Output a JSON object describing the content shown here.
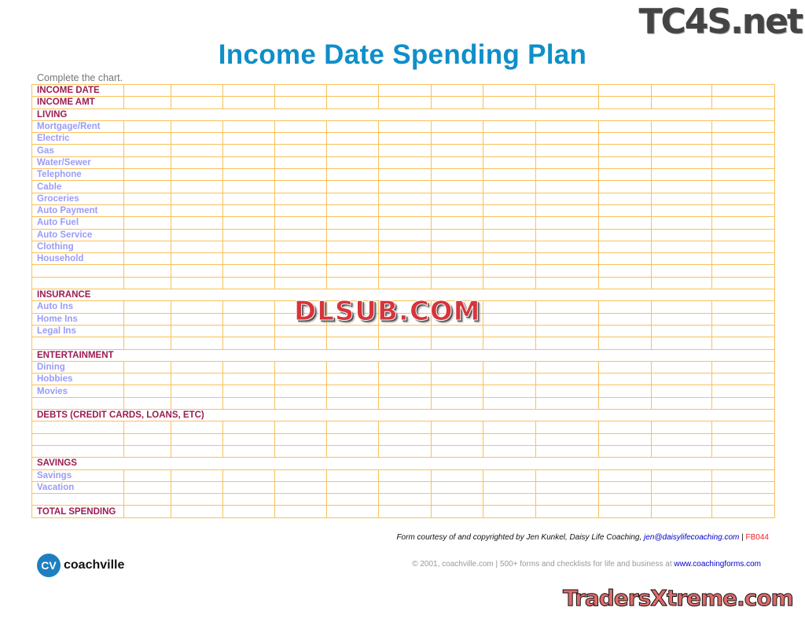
{
  "title": "Income Date Spending Plan",
  "instruction": "Complete the chart.",
  "rows": [
    {
      "label": "INCOME DATE",
      "type": "h"
    },
    {
      "label": "INCOME AMT",
      "type": "h"
    },
    {
      "label": "LIVING",
      "type": "section"
    },
    {
      "label": "Mortgage/Rent",
      "type": "i"
    },
    {
      "label": "Electric",
      "type": "i"
    },
    {
      "label": "Gas",
      "type": "i"
    },
    {
      "label": "Water/Sewer",
      "type": "i"
    },
    {
      "label": "Telephone",
      "type": "i"
    },
    {
      "label": "Cable",
      "type": "i"
    },
    {
      "label": "Groceries",
      "type": "i"
    },
    {
      "label": "Auto Payment",
      "type": "i"
    },
    {
      "label": "Auto Fuel",
      "type": "i"
    },
    {
      "label": "Auto Service",
      "type": "i"
    },
    {
      "label": "Clothing",
      "type": "i"
    },
    {
      "label": "Household",
      "type": "i"
    },
    {
      "label": "",
      "type": "i"
    },
    {
      "label": "",
      "type": "i"
    },
    {
      "label": "INSURANCE",
      "type": "section"
    },
    {
      "label": "Auto Ins",
      "type": "i"
    },
    {
      "label": "Home Ins",
      "type": "i"
    },
    {
      "label": "Legal Ins",
      "type": "i"
    },
    {
      "label": "",
      "type": "i"
    },
    {
      "label": "ENTERTAINMENT",
      "type": "section"
    },
    {
      "label": "Dining",
      "type": "i"
    },
    {
      "label": "Hobbies",
      "type": "i"
    },
    {
      "label": "Movies",
      "type": "i"
    },
    {
      "label": "",
      "type": "i"
    },
    {
      "label": "DEBTS (CREDIT CARDS, LOANS, ETC)",
      "type": "section"
    },
    {
      "label": "",
      "type": "i"
    },
    {
      "label": "",
      "type": "i"
    },
    {
      "label": "",
      "type": "i"
    },
    {
      "label": "SAVINGS",
      "type": "section"
    },
    {
      "label": "Savings",
      "type": "i"
    },
    {
      "label": "Vacation",
      "type": "i"
    },
    {
      "label": "",
      "type": "i"
    },
    {
      "label": "TOTAL SPENDING",
      "type": "h"
    }
  ],
  "footer": {
    "credit": "Form courtesy of and copyrighted by Jen Kunkel, Daisy Life Coaching, ",
    "email": "jen@daisylifecoaching.com",
    "sep": " | ",
    "code": "FB044",
    "copyright": "© 2001, coachville.com | 500+ forms and checklists for life and business at ",
    "site": "www.coachingforms.com",
    "logo_mark": "CV",
    "logo_text": "coachville"
  },
  "watermarks": {
    "top": "TC4S.net",
    "center": "DLSUB.COM",
    "bottom": "TradersXtreme.com"
  },
  "colors": {
    "title": "#0f8fc8",
    "header_label": "#9b1d52",
    "item_label": "#9a9cf6",
    "grid": "#f7c15b"
  }
}
